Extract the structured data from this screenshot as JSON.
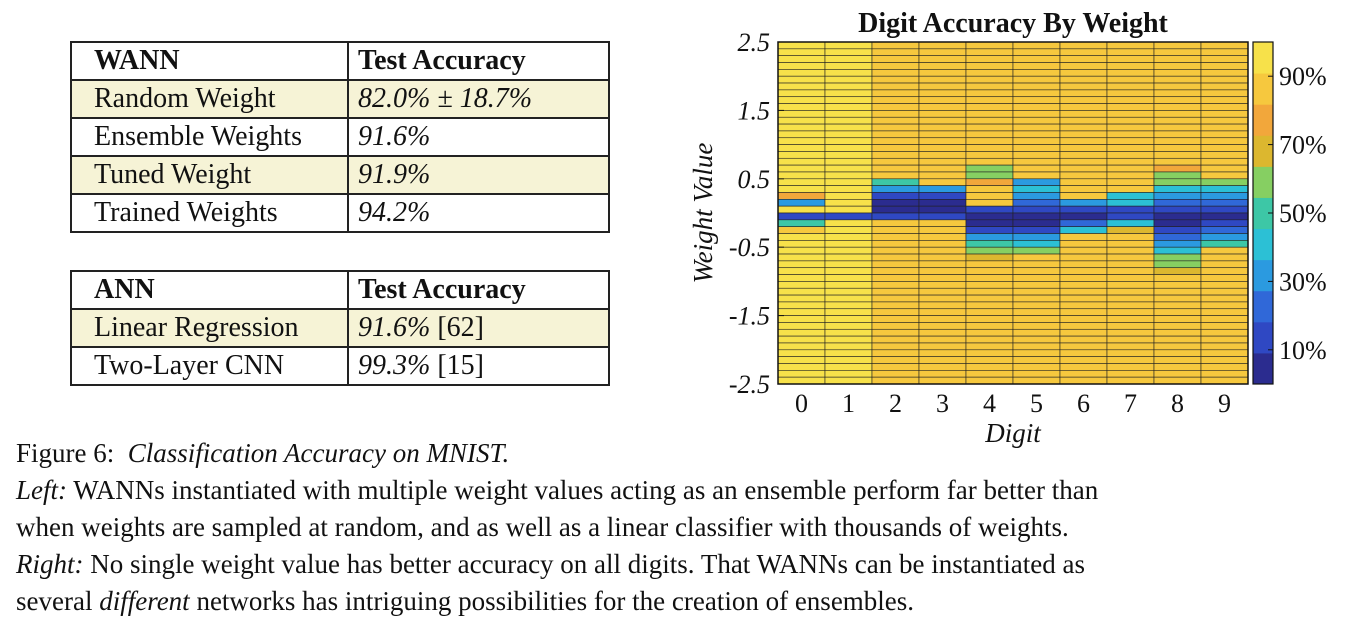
{
  "wann_table": {
    "header": [
      "WANN",
      "Test Accuracy"
    ],
    "rows": [
      {
        "name": "Random Weight",
        "value": "82.0% ± 18.7%"
      },
      {
        "name": "Ensemble Weights",
        "value": "91.6%"
      },
      {
        "name": "Tuned Weight",
        "value": "91.9%"
      },
      {
        "name": "Trained Weights",
        "value": "94.2%"
      }
    ]
  },
  "ann_table": {
    "header": [
      "ANN",
      "Test Accuracy"
    ],
    "rows": [
      {
        "name": "Linear Regression",
        "value": "91.6%",
        "ref": "[62]"
      },
      {
        "name": "Two-Layer CNN",
        "value": "99.3%",
        "ref": "[15]"
      }
    ]
  },
  "chart_data": {
    "type": "heatmap",
    "title": "Digit Accuracy By Weight",
    "xlabel": "Digit",
    "ylabel": "Weight Value",
    "x_categories": [
      "0",
      "1",
      "2",
      "3",
      "4",
      "5",
      "6",
      "7",
      "8",
      "9"
    ],
    "y_ticks": [
      "2.5",
      "1.5",
      "0.5",
      "-0.5",
      "-1.5",
      "-2.5"
    ],
    "ylim": [
      -2.5,
      2.5
    ],
    "n_rows": 50,
    "colorbar_ticks": [
      "90%",
      "70%",
      "50%",
      "30%",
      "10%"
    ],
    "colorbar_range": [
      0,
      100
    ],
    "colors": [
      "#2b2c8f",
      "#2f48c3",
      "#3068d8",
      "#2b9ae0",
      "#2cc0d5",
      "#3dc7a6",
      "#86cf62",
      "#dcb72f",
      "#f2a73b",
      "#f6c83e",
      "#f7e14a"
    ],
    "base_accuracy": [
      94,
      97,
      84,
      86,
      88,
      84,
      88,
      86,
      84,
      86
    ],
    "profiles": {
      "0": {
        "0.25": 80,
        "0.15": 30,
        "0.05": 97,
        "-0.05": 10,
        "-0.15": 50,
        "-0.25": 85
      },
      "1": {
        "0.15": 97,
        "0.05": 97,
        "-0.05": 10,
        "-0.15": 97
      },
      "2": {
        "0.45": 48,
        "0.35": 35,
        "0.25": 10,
        "0.15": 8,
        "0.05": 8,
        "-0.05": 15,
        "-0.15": 82
      },
      "3": {
        "0.35": 35,
        "0.25": 10,
        "0.15": 8,
        "0.05": 8,
        "-0.05": 15,
        "-0.15": 84
      },
      "4": {
        "0.65": 55,
        "0.55": 60,
        "0.45": 75,
        "0.05": 15,
        "-0.05": 8,
        "-0.15": 8,
        "-0.25": 10,
        "-0.35": 30,
        "-0.45": 50,
        "-0.55": 60,
        "-0.65": 65
      },
      "5": {
        "0.45": 35,
        "0.35": 45,
        "0.25": 30,
        "0.15": 20,
        "0.05": 10,
        "-0.05": 8,
        "-0.15": 8,
        "-0.25": 15,
        "-0.35": 35,
        "-0.45": 45,
        "-0.55": 55
      },
      "6": {
        "0.15": 30,
        "0.05": 10,
        "-0.05": 8,
        "-0.15": 20,
        "-0.25": 40
      },
      "7": {
        "0.25": 40,
        "0.15": 45,
        "0.05": 15,
        "-0.05": 10,
        "-0.15": 40,
        "-0.25": 65
      },
      "8": {
        "0.65": 75,
        "0.55": 60,
        "0.45": 55,
        "0.35": 45,
        "0.25": 30,
        "0.15": 20,
        "0.05": 10,
        "-0.05": 8,
        "-0.15": 8,
        "-0.25": 10,
        "-0.35": 20,
        "-0.45": 30,
        "-0.55": 45,
        "-0.65": 55,
        "-0.75": 60,
        "-0.85": 65
      },
      "9": {
        "0.45": 55,
        "0.35": 40,
        "0.25": 30,
        "0.15": 20,
        "0.05": 10,
        "-0.05": 8,
        "-0.15": 10,
        "-0.25": 20,
        "-0.35": 35,
        "-0.45": 50
      }
    }
  },
  "caption": {
    "figure_label": "Figure 6:",
    "figure_title": "Classification Accuracy on MNIST.",
    "left_label": "Left:",
    "left_text": " WANNs instantiated with multiple weight values acting as an ensemble perform far better than",
    "left_text_2": "when weights are sampled at random, and as well as a linear classifier with thousands of weights.",
    "right_label": "Right:",
    "right_text": " No single weight value has better accuracy on all digits. That WANNs can be instantiated as",
    "right_text_2a": "several ",
    "right_text_2b": "different",
    "right_text_2c": " networks has intriguing possibilities for the creation of ensembles."
  }
}
